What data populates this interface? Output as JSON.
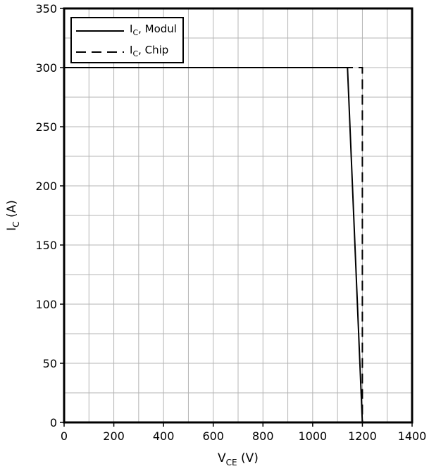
{
  "chart_data": {
    "type": "line",
    "xlabel": {
      "main": "V",
      "sub": "CE",
      "unit": " (V)"
    },
    "ylabel": {
      "main": "I",
      "sub": "C",
      "unit": " (A)"
    },
    "xlim": [
      0,
      1400
    ],
    "ylim": [
      0,
      350
    ],
    "x_ticks": [
      0,
      200,
      400,
      600,
      800,
      1000,
      1200,
      1400
    ],
    "y_ticks": [
      0,
      50,
      100,
      150,
      200,
      250,
      300,
      350
    ],
    "x_minor_step": 100,
    "y_minor_step": 25,
    "grid": true,
    "legend_position": "top-left",
    "series": [
      {
        "name": {
          "main": "I",
          "sub": "C",
          "rest": ", Modul"
        },
        "style": "solid",
        "color": "#000000",
        "points": [
          [
            0,
            300
          ],
          [
            1140,
            300
          ],
          [
            1200,
            0
          ]
        ]
      },
      {
        "name": {
          "main": "I",
          "sub": "C",
          "rest": ", Chip"
        },
        "style": "dashed",
        "color": "#000000",
        "points": [
          [
            0,
            300
          ],
          [
            1200,
            300
          ],
          [
            1200,
            0
          ]
        ]
      }
    ]
  }
}
